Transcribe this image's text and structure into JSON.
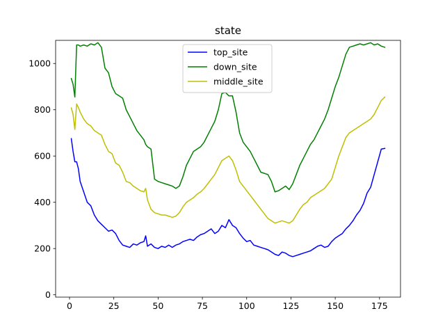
{
  "chart_data": {
    "type": "line",
    "title": "state",
    "xlabel": "",
    "ylabel": "",
    "xlim": [
      -7.85,
      186.85
    ],
    "ylim": [
      -10,
      1100
    ],
    "xticks": [
      0,
      25,
      50,
      75,
      100,
      125,
      150,
      175
    ],
    "yticks": [
      0,
      200,
      400,
      600,
      800,
      1000
    ],
    "grid": false,
    "legend_position": "upper center",
    "series": [
      {
        "name": "top_site",
        "color": "#0000ff",
        "x": [
          1,
          2,
          3,
          4,
          5,
          6,
          8,
          10,
          12,
          14,
          16,
          18,
          20,
          22,
          24,
          26,
          28,
          30,
          32,
          34,
          36,
          38,
          40,
          42,
          43,
          44,
          46,
          48,
          50,
          52,
          54,
          56,
          58,
          60,
          62,
          64,
          66,
          68,
          70,
          72,
          74,
          76,
          78,
          80,
          82,
          84,
          86,
          88,
          90,
          92,
          94,
          96,
          98,
          100,
          102,
          104,
          106,
          108,
          110,
          112,
          114,
          116,
          118,
          120,
          122,
          124,
          126,
          128,
          130,
          132,
          134,
          136,
          138,
          140,
          142,
          144,
          146,
          148,
          150,
          152,
          154,
          156,
          158,
          160,
          162,
          164,
          166,
          168,
          170,
          172,
          174,
          176,
          178
        ],
        "y": [
          675,
          620,
          575,
          575,
          545,
          490,
          445,
          400,
          385,
          345,
          320,
          305,
          290,
          275,
          280,
          265,
          235,
          215,
          210,
          205,
          220,
          215,
          225,
          230,
          255,
          210,
          220,
          205,
          200,
          210,
          205,
          215,
          205,
          215,
          220,
          230,
          235,
          240,
          235,
          250,
          260,
          265,
          275,
          285,
          265,
          275,
          300,
          290,
          325,
          300,
          290,
          265,
          245,
          230,
          235,
          215,
          210,
          205,
          200,
          195,
          185,
          175,
          170,
          185,
          180,
          170,
          165,
          170,
          175,
          180,
          185,
          190,
          200,
          210,
          215,
          205,
          210,
          230,
          245,
          255,
          265,
          285,
          300,
          320,
          345,
          365,
          395,
          440,
          465,
          520,
          575,
          630,
          633
        ]
      },
      {
        "name": "down_site",
        "color": "#008000",
        "x": [
          1,
          2,
          3,
          4,
          5,
          6,
          8,
          10,
          12,
          14,
          16,
          18,
          20,
          22,
          24,
          26,
          28,
          30,
          32,
          34,
          36,
          38,
          40,
          42,
          43,
          44,
          46,
          48,
          50,
          52,
          54,
          56,
          58,
          60,
          62,
          64,
          66,
          68,
          70,
          72,
          74,
          76,
          78,
          80,
          82,
          84,
          86,
          88,
          90,
          92,
          94,
          96,
          98,
          100,
          102,
          104,
          106,
          108,
          110,
          112,
          114,
          116,
          118,
          120,
          122,
          124,
          126,
          128,
          130,
          132,
          134,
          136,
          138,
          140,
          142,
          144,
          146,
          148,
          150,
          152,
          154,
          156,
          158,
          160,
          162,
          164,
          166,
          168,
          170,
          172,
          174,
          176,
          178
        ],
        "y": [
          935,
          910,
          855,
          1080,
          1080,
          1075,
          1080,
          1075,
          1085,
          1080,
          1090,
          1070,
          980,
          960,
          900,
          870,
          860,
          850,
          800,
          770,
          740,
          710,
          690,
          670,
          650,
          640,
          630,
          500,
          490,
          485,
          480,
          475,
          470,
          460,
          470,
          510,
          560,
          590,
          620,
          630,
          640,
          660,
          690,
          720,
          750,
          800,
          870,
          875,
          860,
          860,
          790,
          700,
          660,
          640,
          620,
          590,
          560,
          530,
          525,
          520,
          490,
          445,
          450,
          460,
          470,
          455,
          480,
          520,
          560,
          590,
          620,
          650,
          670,
          700,
          730,
          760,
          800,
          850,
          900,
          940,
          990,
          1040,
          1070,
          1075,
          1080,
          1085,
          1080,
          1085,
          1090,
          1080,
          1085,
          1075,
          1070
        ]
      },
      {
        "name": "middle_site",
        "color": "#bfbf00",
        "x": [
          1,
          2,
          3,
          4,
          5,
          6,
          8,
          10,
          12,
          14,
          16,
          18,
          20,
          22,
          24,
          26,
          28,
          30,
          32,
          34,
          36,
          38,
          40,
          42,
          43,
          44,
          46,
          48,
          50,
          52,
          54,
          56,
          58,
          60,
          62,
          64,
          66,
          68,
          70,
          72,
          74,
          76,
          78,
          80,
          82,
          84,
          86,
          88,
          90,
          92,
          94,
          96,
          98,
          100,
          102,
          104,
          106,
          108,
          110,
          112,
          114,
          116,
          118,
          120,
          122,
          124,
          126,
          128,
          130,
          132,
          134,
          136,
          138,
          140,
          142,
          144,
          146,
          148,
          150,
          152,
          154,
          156,
          158,
          160,
          162,
          164,
          166,
          168,
          170,
          172,
          174,
          176,
          178
        ],
        "y": [
          808,
          780,
          715,
          825,
          810,
          790,
          760,
          740,
          730,
          710,
          700,
          690,
          650,
          620,
          610,
          570,
          560,
          530,
          490,
          485,
          470,
          460,
          450,
          445,
          460,
          410,
          370,
          355,
          350,
          345,
          345,
          340,
          335,
          340,
          355,
          380,
          400,
          410,
          420,
          435,
          445,
          460,
          480,
          500,
          520,
          550,
          580,
          590,
          600,
          580,
          540,
          490,
          470,
          450,
          430,
          410,
          390,
          370,
          350,
          330,
          320,
          310,
          315,
          320,
          315,
          310,
          320,
          345,
          370,
          390,
          400,
          420,
          430,
          440,
          450,
          460,
          480,
          500,
          550,
          600,
          640,
          680,
          700,
          710,
          720,
          730,
          740,
          750,
          760,
          780,
          810,
          840,
          855
        ]
      }
    ]
  }
}
